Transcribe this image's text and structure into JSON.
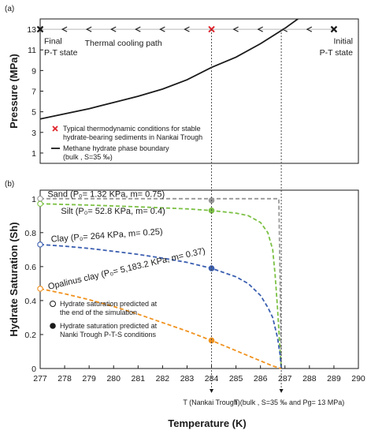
{
  "figure": {
    "panel_a_label": "(a)",
    "panel_b_label": "(b)",
    "x_axis_title": "Temperature (K)"
  },
  "chart_data": [
    {
      "panel": "a",
      "type": "line",
      "ylabel": "Pressure (MPa)",
      "xlim": [
        277,
        290
      ],
      "ylim": [
        0,
        14
      ],
      "y_ticks": [
        1,
        3,
        5,
        7,
        9,
        11,
        13
      ],
      "grid": false,
      "phase_boundary": {
        "x": [
          277,
          278,
          279,
          280,
          281,
          282,
          283,
          284,
          285,
          286,
          287,
          288,
          289
        ],
        "y": [
          4.3,
          4.8,
          5.3,
          5.9,
          6.5,
          7.2,
          8.1,
          9.3,
          10.3,
          11.6,
          13.1,
          14.8,
          17.0
        ]
      },
      "cooling_path": {
        "y": 13,
        "start_x": 289,
        "end_x": 277,
        "arrow_x": [
          278,
          279,
          280,
          281,
          282,
          283,
          285,
          286,
          287,
          288
        ],
        "label": "Thermal cooling path",
        "start_label": [
          "Initial",
          "P-T state"
        ],
        "end_label": [
          "Final",
          "P-T state"
        ],
        "color": "#1a1a1a"
      },
      "nankai_point": {
        "x": 284,
        "y": 13,
        "color": "#e0232b"
      },
      "legend": [
        {
          "marker": "cross",
          "color": "#e0232b",
          "lines": [
            "Typical thermodynamic conditions for stable",
            "hydrate-bearing sediments in Nankai Trough"
          ]
        },
        {
          "marker": "line",
          "color": "#1a1a1a",
          "lines": [
            "Methane hydrate phase boundary",
            "(bulk , S=35 ‰)"
          ]
        }
      ]
    },
    {
      "panel": "b",
      "type": "line",
      "ylabel": "Hydrate Saturation (Sh)",
      "xlim": [
        277,
        290
      ],
      "ylim": [
        0,
        1.05
      ],
      "x_ticks": [
        277,
        278,
        279,
        280,
        281,
        282,
        283,
        284,
        285,
        286,
        287,
        288,
        289,
        290
      ],
      "y_ticks": [
        0,
        0.2,
        0.4,
        0.6,
        0.8,
        1
      ],
      "y_tick_labels": [
        "0",
        "0.2",
        "0.4",
        "0.6",
        "0.8",
        "1"
      ],
      "grid": false,
      "series": [
        {
          "name": "Sand (P₀= 1.32 KPa, m= 0.75)",
          "color": "#999999",
          "x": [
            277,
            278,
            279,
            280,
            281,
            282,
            283,
            284,
            285,
            286,
            286.5,
            286.75,
            286.8,
            286.85
          ],
          "y": [
            1.0,
            1.0,
            1.0,
            1.0,
            1.0,
            1.0,
            1.0,
            1.0,
            1.0,
            1.0,
            1.0,
            1.0,
            0.5,
            0.0
          ],
          "start_point": {
            "x": 277,
            "y": 1.0
          },
          "nankai_point": {
            "x": 284,
            "y": 0.99
          }
        },
        {
          "name": "Silt (P₀= 52.8 KPa, m= 0.4)",
          "color": "#7bc043",
          "x": [
            277,
            278,
            279,
            280,
            281,
            282,
            283,
            284,
            285,
            285.5,
            286,
            286.3,
            286.5,
            286.6,
            286.7,
            286.8,
            286.85
          ],
          "y": [
            0.97,
            0.966,
            0.962,
            0.957,
            0.952,
            0.946,
            0.94,
            0.93,
            0.915,
            0.9,
            0.86,
            0.8,
            0.7,
            0.55,
            0.35,
            0.1,
            0.0
          ],
          "start_point": {
            "x": 277,
            "y": 0.97
          },
          "nankai_point": {
            "x": 284,
            "y": 0.93
          }
        },
        {
          "name": "Clay (P₀= 264 KPa, m= 0.25)",
          "color": "#3b5fb0",
          "x": [
            277,
            278,
            279,
            280,
            281,
            282,
            283,
            284,
            285,
            285.5,
            286,
            286.3,
            286.5,
            286.7,
            286.8,
            286.85
          ],
          "y": [
            0.73,
            0.72,
            0.707,
            0.69,
            0.672,
            0.65,
            0.625,
            0.59,
            0.54,
            0.5,
            0.43,
            0.36,
            0.3,
            0.18,
            0.08,
            0.0
          ],
          "start_point": {
            "x": 277,
            "y": 0.73
          },
          "nankai_point": {
            "x": 284,
            "y": 0.59
          }
        },
        {
          "name": "Opalinus clay (P₀= 5,183.2 KPa, m= 0.37)",
          "color": "#f0921e",
          "x": [
            277,
            278,
            279,
            280,
            281,
            282,
            283,
            284,
            285,
            285.5,
            286,
            286.5,
            286.85
          ],
          "y": [
            0.47,
            0.44,
            0.405,
            0.365,
            0.32,
            0.27,
            0.22,
            0.165,
            0.105,
            0.075,
            0.045,
            0.015,
            0.0
          ],
          "start_point": {
            "x": 277,
            "y": 0.47
          },
          "nankai_point": {
            "x": 284,
            "y": 0.165
          }
        }
      ],
      "legend": [
        {
          "marker": "open-circle",
          "lines": [
            "Hydrate saturation predicted at",
            "the end of the simulation"
          ]
        },
        {
          "marker": "filled-circle",
          "lines": [
            "Hydrate saturation predicted at",
            "Nanki Trough P-T-S conditions"
          ]
        }
      ]
    }
  ],
  "guides": [
    {
      "x": 284,
      "label": "T (Nankai Trough)"
    },
    {
      "x": 286.85,
      "label": "T (bulk , S=35 ‰ and Pg= 13 MPa)"
    }
  ]
}
